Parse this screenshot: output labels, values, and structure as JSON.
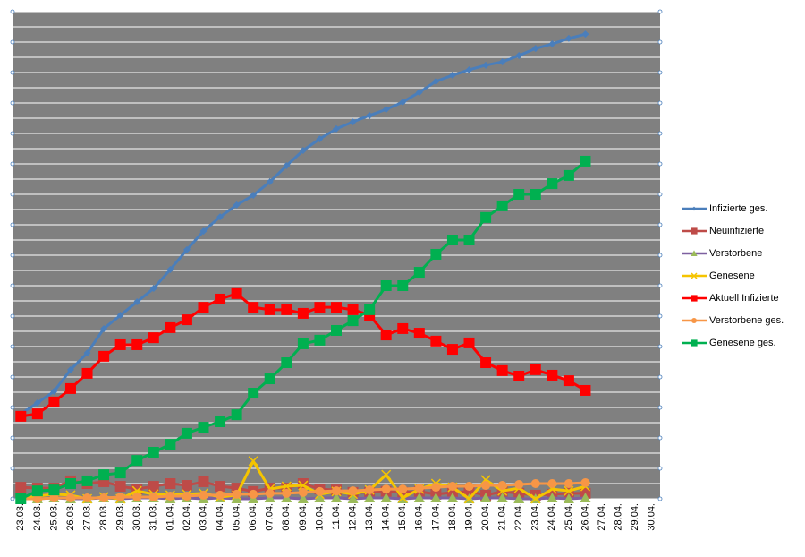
{
  "chart_data": {
    "type": "line",
    "categories": [
      "23.03.",
      "24.03.",
      "25.03.",
      "26.03.",
      "27.03.",
      "28.03.",
      "29.03.",
      "30.03.",
      "31.03.",
      "01.04.",
      "02.04.",
      "03.04.",
      "04.04.",
      "05.04.",
      "06.04.",
      "07.04.",
      "08.04.",
      "09.04.",
      "10.04.",
      "11.04.",
      "12.04.",
      "13.04.",
      "14.04.",
      "15.04.",
      "16.04.",
      "17.04.",
      "18.04.",
      "19.04.",
      "20.04.",
      "21.04.",
      "22.04.",
      "23.04.",
      "24.04.",
      "25.04.",
      "26.04.",
      "27.04.",
      "28.04.",
      "29.04.",
      "30.04."
    ],
    "ylim": [
      0,
      16
    ],
    "yticks": [
      0,
      1,
      2,
      3,
      4,
      5,
      6,
      7,
      8,
      9,
      10,
      11,
      12,
      13,
      14,
      15,
      16
    ],
    "grid": true,
    "legend": "right",
    "series": [
      {
        "name": "Infizierte ges.",
        "color": "#4a7ebb",
        "marker": "diamond",
        "values": [
          2.79,
          3.15,
          3.53,
          4.24,
          4.79,
          5.59,
          6.03,
          6.47,
          6.91,
          7.53,
          8.18,
          8.79,
          9.26,
          9.65,
          9.97,
          10.41,
          10.94,
          11.44,
          11.82,
          12.15,
          12.38,
          12.59,
          12.79,
          13.03,
          13.35,
          13.71,
          13.91,
          14.09,
          14.24,
          14.35,
          14.56,
          14.79,
          14.94,
          15.12,
          15.26,
          null,
          null,
          null,
          null
        ]
      },
      {
        "name": "Neuinfizierte",
        "color": "#be4b48",
        "marker": "square",
        "values": [
          0.38,
          0.35,
          0.35,
          0.59,
          0.5,
          0.56,
          0.41,
          0.32,
          0.41,
          0.5,
          0.44,
          0.56,
          0.41,
          0.35,
          0.24,
          0.35,
          0.35,
          0.5,
          0.32,
          0.29,
          0.21,
          0.21,
          0.24,
          0.21,
          0.24,
          0.15,
          0.21,
          0.24,
          0.12,
          0.24,
          0.18,
          0.12,
          0.15,
          0.18,
          0.18,
          null,
          null,
          null,
          null
        ]
      },
      {
        "name": "Verstorbene",
        "color": "#7d60a0",
        "marker_color": "#9bbb59",
        "marker": "triangle",
        "values": [
          0,
          0,
          0.03,
          0,
          0,
          0.03,
          0,
          0.03,
          0.03,
          0,
          0.03,
          0,
          0.03,
          0,
          0,
          0.03,
          0.03,
          0,
          0.03,
          0.03,
          0,
          0.03,
          0.03,
          0,
          0.03,
          0.03,
          0.03,
          0,
          0.03,
          0.03,
          0,
          0,
          0.03,
          0,
          0.03,
          null,
          null,
          null,
          null
        ]
      },
      {
        "name": "Genesene",
        "color": "#f5c400",
        "marker": "x",
        "values": [
          0,
          0.09,
          0.15,
          0.12,
          0,
          0.06,
          0,
          0.26,
          0.15,
          0.12,
          0.15,
          0.18,
          0.06,
          0.12,
          1.24,
          0.32,
          0.41,
          0.44,
          0.15,
          0.24,
          0.15,
          0.29,
          0.79,
          0.03,
          0.32,
          0.5,
          0.38,
          0,
          0.62,
          0.26,
          0.35,
          0,
          0.32,
          0.26,
          0.41,
          null,
          null,
          null,
          null
        ]
      },
      {
        "name": "Aktuell Infizierte",
        "color": "#ff0000",
        "marker": "square",
        "values": [
          2.71,
          2.79,
          3.18,
          3.62,
          4.12,
          4.68,
          5.06,
          5.06,
          5.29,
          5.62,
          5.88,
          6.29,
          6.56,
          6.74,
          6.29,
          6.21,
          6.21,
          6.09,
          6.29,
          6.29,
          6.21,
          6.03,
          5.38,
          5.59,
          5.44,
          5.18,
          4.91,
          5.12,
          4.47,
          4.21,
          4.03,
          4.24,
          4.06,
          3.88,
          3.56,
          null,
          null,
          null,
          null
        ]
      },
      {
        "name": "Verstorbene ges.",
        "color": "#f79646",
        "marker": "circle",
        "values": [
          0,
          0,
          0.03,
          0.03,
          0.03,
          0.03,
          0.06,
          0.06,
          0.06,
          0.09,
          0.09,
          0.12,
          0.12,
          0.15,
          0.15,
          0.18,
          0.18,
          0.21,
          0.24,
          0.26,
          0.26,
          0.29,
          0.32,
          0.32,
          0.35,
          0.38,
          0.41,
          0.41,
          0.44,
          0.44,
          0.47,
          0.5,
          0.5,
          0.5,
          0.53,
          null,
          null,
          null,
          null
        ]
      },
      {
        "name": "Genesene ges.",
        "color": "#00b050",
        "marker": "square",
        "values": [
          0,
          0.26,
          0.29,
          0.5,
          0.59,
          0.79,
          0.85,
          1.26,
          1.53,
          1.79,
          2.15,
          2.35,
          2.53,
          2.76,
          3.47,
          3.94,
          4.47,
          5.09,
          5.21,
          5.53,
          5.85,
          6.21,
          7.0,
          7.0,
          7.44,
          8.03,
          8.5,
          8.5,
          9.24,
          9.62,
          10.0,
          10.0,
          10.35,
          10.62,
          11.09,
          null,
          null,
          null,
          null
        ]
      }
    ]
  }
}
